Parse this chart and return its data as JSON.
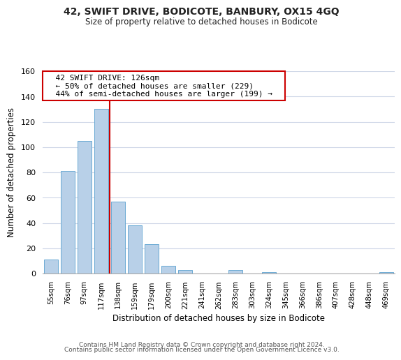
{
  "title": "42, SWIFT DRIVE, BODICOTE, BANBURY, OX15 4GQ",
  "subtitle": "Size of property relative to detached houses in Bodicote",
  "xlabel": "Distribution of detached houses by size in Bodicote",
  "ylabel": "Number of detached properties",
  "bar_labels": [
    "55sqm",
    "76sqm",
    "97sqm",
    "117sqm",
    "138sqm",
    "159sqm",
    "179sqm",
    "200sqm",
    "221sqm",
    "241sqm",
    "262sqm",
    "283sqm",
    "303sqm",
    "324sqm",
    "345sqm",
    "366sqm",
    "386sqm",
    "407sqm",
    "428sqm",
    "448sqm",
    "469sqm"
  ],
  "bar_values": [
    11,
    81,
    105,
    130,
    57,
    38,
    23,
    6,
    3,
    0,
    0,
    3,
    0,
    1,
    0,
    0,
    0,
    0,
    0,
    0,
    1
  ],
  "bar_color": "#b8d0e8",
  "bar_edge_color": "#6aaad4",
  "vline_x": 3.5,
  "vline_color": "#cc0000",
  "annotation_title": "42 SWIFT DRIVE: 126sqm",
  "annotation_line1": "← 50% of detached houses are smaller (229)",
  "annotation_line2": "44% of semi-detached houses are larger (199) →",
  "annotation_box_color": "#ffffff",
  "annotation_box_edge": "#cc0000",
  "ylim": [
    0,
    160
  ],
  "yticks": [
    0,
    20,
    40,
    60,
    80,
    100,
    120,
    140,
    160
  ],
  "footer1": "Contains HM Land Registry data © Crown copyright and database right 2024.",
  "footer2": "Contains public sector information licensed under the Open Government Licence v3.0.",
  "background_color": "#ffffff",
  "grid_color": "#d0d8e8"
}
